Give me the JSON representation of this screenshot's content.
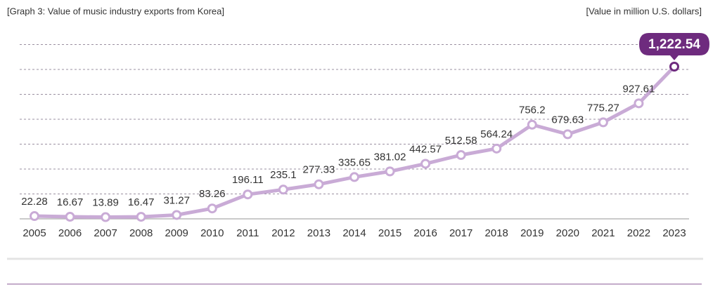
{
  "chart_data": {
    "type": "line",
    "title": "[Graph 3: Value of music industry exports from Korea]",
    "unit_label": "[Value in million U.S. dollars]",
    "categories": [
      "2005",
      "2006",
      "2007",
      "2008",
      "2009",
      "2010",
      "2011",
      "2012",
      "2013",
      "2014",
      "2015",
      "2016",
      "2017",
      "2018",
      "2019",
      "2020",
      "2021",
      "2022",
      "2023"
    ],
    "values": [
      22.28,
      16.67,
      13.89,
      16.47,
      31.27,
      83.26,
      196.11,
      235.1,
      277.33,
      335.65,
      381.02,
      442.57,
      512.58,
      564.24,
      756.2,
      679.63,
      775.27,
      927.61,
      1222.54
    ],
    "value_labels": [
      "22.28",
      "16.67",
      "13.89",
      "16.47",
      "31.27",
      "83.26",
      "196.11",
      "235.1",
      "277.33",
      "335.65",
      "381.02",
      "442.57",
      "512.58",
      "564.24",
      "756.2",
      "679.63",
      "775.27",
      "927.61",
      "1,222.54"
    ],
    "color": "#c9abd6",
    "highlight_color": "#6e2b7e",
    "ylim": [
      0,
      1400
    ],
    "yticks": [
      0,
      200,
      400,
      600,
      800,
      1000,
      1200,
      1400
    ],
    "grid": true
  }
}
